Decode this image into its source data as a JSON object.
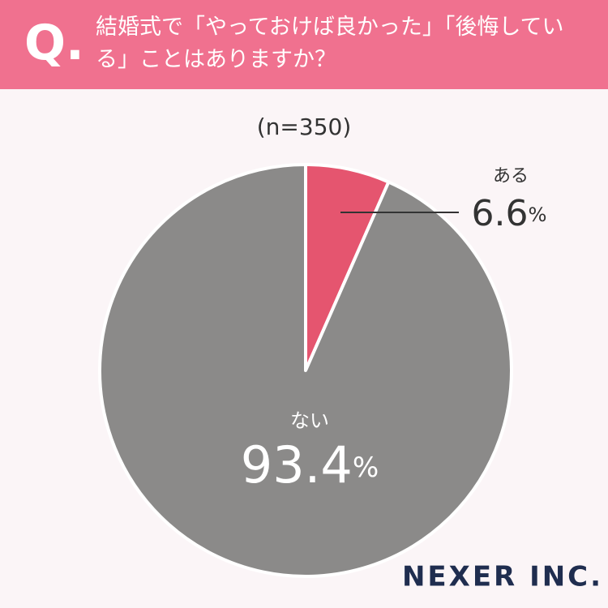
{
  "chart_data": {
    "type": "pie",
    "q_mark": "Q.",
    "title": "結婚式で「やっておけば良かった」「後悔している」ことはありますか？",
    "subtitle": "(n=350)",
    "categories": [
      "ある",
      "ない"
    ],
    "values": [
      6.6,
      93.4
    ],
    "value_labels": [
      "6.6%",
      "93.4%"
    ],
    "colors": [
      "#e5556f",
      "#8b8a89"
    ],
    "logo": "NEXER INC."
  }
}
